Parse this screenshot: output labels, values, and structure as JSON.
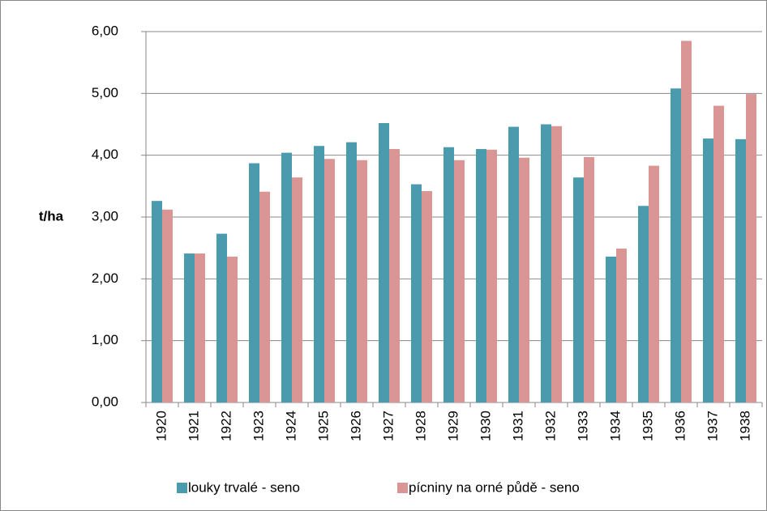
{
  "chart_data": {
    "type": "bar",
    "y_label": "t/ha",
    "categories": [
      "1920",
      "1921",
      "1922",
      "1923",
      "1924",
      "1925",
      "1926",
      "1927",
      "1928",
      "1929",
      "1930",
      "1931",
      "1932",
      "1933",
      "1934",
      "1935",
      "1936",
      "1937",
      "1938"
    ],
    "series": [
      {
        "name": "louky trvalé - seno",
        "color": "#4a9bae",
        "values": [
          3.26,
          2.41,
          2.73,
          3.87,
          4.04,
          4.15,
          4.21,
          4.52,
          3.53,
          4.13,
          4.1,
          4.46,
          4.5,
          3.64,
          2.36,
          3.18,
          5.08,
          4.27,
          4.26
        ]
      },
      {
        "name": "pícniny na orné půdě - seno",
        "color": "#d99694",
        "values": [
          3.12,
          2.41,
          2.36,
          3.41,
          3.64,
          3.94,
          3.92,
          4.1,
          3.42,
          3.92,
          4.09,
          3.96,
          4.47,
          3.97,
          2.49,
          3.83,
          5.85,
          4.8,
          4.99
        ]
      }
    ],
    "ylim": [
      0,
      6
    ],
    "yticks": [
      {
        "value": 0,
        "label": "0,00"
      },
      {
        "value": 1,
        "label": "1,00"
      },
      {
        "value": 2,
        "label": "2,00"
      },
      {
        "value": 3,
        "label": "3,00"
      },
      {
        "value": 4,
        "label": "4,00"
      },
      {
        "value": 5,
        "label": "5,00"
      },
      {
        "value": 6,
        "label": "6,00"
      }
    ],
    "grid": true,
    "legend": "bottom"
  }
}
